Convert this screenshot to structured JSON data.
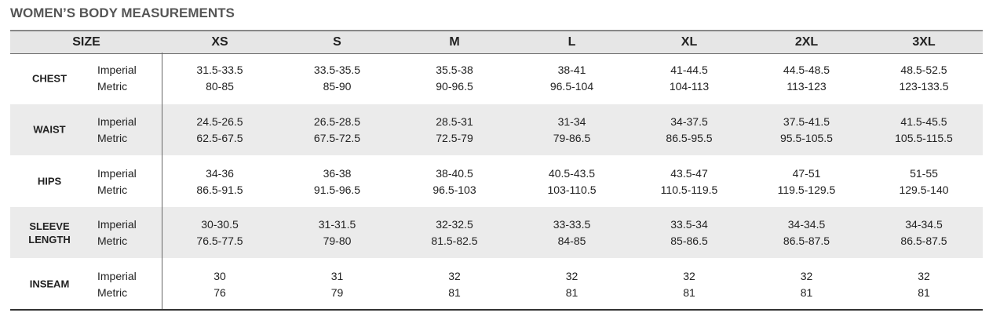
{
  "title": "WOMEN’S BODY MEASUREMENTS",
  "table": {
    "header": [
      "SIZE",
      "XS",
      "S",
      "M",
      "L",
      "XL",
      "2XL",
      "3XL"
    ],
    "rows": [
      {
        "label": "CHEST",
        "units": [
          "Imperial",
          "Metric"
        ],
        "values": [
          [
            "31.5-33.5",
            "80-85"
          ],
          [
            "33.5-35.5",
            "85-90"
          ],
          [
            "35.5-38",
            "90-96.5"
          ],
          [
            "38-41",
            "96.5-104"
          ],
          [
            "41-44.5",
            "104-113"
          ],
          [
            "44.5-48.5",
            "113-123"
          ],
          [
            "48.5-52.5",
            "123-133.5"
          ]
        ]
      },
      {
        "label": "WAIST",
        "units": [
          "Imperial",
          "Metric"
        ],
        "values": [
          [
            "24.5-26.5",
            "62.5-67.5"
          ],
          [
            "26.5-28.5",
            "67.5-72.5"
          ],
          [
            "28.5-31",
            "72.5-79"
          ],
          [
            "31-34",
            "79-86.5"
          ],
          [
            "34-37.5",
            "86.5-95.5"
          ],
          [
            "37.5-41.5",
            "95.5-105.5"
          ],
          [
            "41.5-45.5",
            "105.5-115.5"
          ]
        ]
      },
      {
        "label": "HIPS",
        "units": [
          "Imperial",
          "Metric"
        ],
        "values": [
          [
            "34-36",
            "86.5-91.5"
          ],
          [
            "36-38",
            "91.5-96.5"
          ],
          [
            "38-40.5",
            "96.5-103"
          ],
          [
            "40.5-43.5",
            "103-110.5"
          ],
          [
            "43.5-47",
            "110.5-119.5"
          ],
          [
            "47-51",
            "119.5-129.5"
          ],
          [
            "51-55",
            "129.5-140"
          ]
        ]
      },
      {
        "label": "SLEEVE LENGTH",
        "units": [
          "Imperial",
          "Metric"
        ],
        "values": [
          [
            "30-30.5",
            "76.5-77.5"
          ],
          [
            "31-31.5",
            "79-80"
          ],
          [
            "32-32.5",
            "81.5-82.5"
          ],
          [
            "33-33.5",
            "84-85"
          ],
          [
            "33.5-34",
            "85-86.5"
          ],
          [
            "34-34.5",
            "86.5-87.5"
          ],
          [
            "34-34.5",
            "86.5-87.5"
          ]
        ]
      },
      {
        "label": "INSEAM",
        "units": [
          "Imperial",
          "Metric"
        ],
        "values": [
          [
            "30",
            "76"
          ],
          [
            "31",
            "79"
          ],
          [
            "32",
            "81"
          ],
          [
            "32",
            "81"
          ],
          [
            "32",
            "81"
          ],
          [
            "32",
            "81"
          ],
          [
            "32",
            "81"
          ]
        ]
      }
    ]
  }
}
